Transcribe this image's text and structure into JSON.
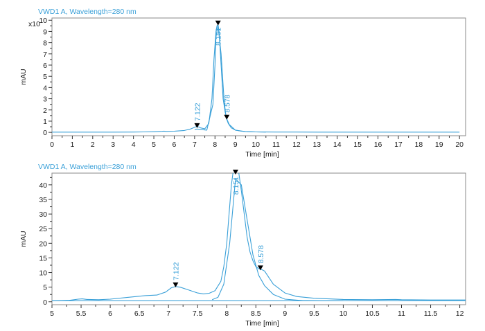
{
  "chart_data": [
    {
      "type": "line",
      "title": "VWD1 A, Wavelength=280 nm",
      "xlabel": "Time [min]",
      "ylabel": "mAU",
      "y_multiplier_label": "x10",
      "xlim": [
        0,
        20.3
      ],
      "ylim": [
        -0.3,
        10.2
      ],
      "x_ticks": [
        0,
        1,
        2,
        3,
        4,
        5,
        6,
        7,
        8,
        9,
        10,
        11,
        12,
        13,
        14,
        15,
        16,
        17,
        18,
        19,
        20
      ],
      "x_tick_labels": [
        "0",
        "1",
        "2",
        "3",
        "4",
        "5",
        "6",
        "7",
        "8",
        "9",
        "10",
        "11",
        "12",
        "13",
        "14",
        "15",
        "16",
        "17",
        "18",
        "19",
        "20"
      ],
      "y_ticks": [
        0,
        1,
        2,
        3,
        4,
        5,
        6,
        7,
        8,
        9,
        10
      ],
      "y_tick_labels": [
        "0",
        "1",
        "2",
        "3",
        "4",
        "5",
        "6",
        "7",
        "8",
        "9",
        "10"
      ],
      "grid": false,
      "colors": {
        "trace": "#3aa0d8",
        "title": "#3aa0d8",
        "marker": "#000000",
        "axis": "#333333"
      },
      "series": [
        {
          "x": [
            0,
            1,
            2,
            3,
            4,
            4.5,
            5,
            5.4,
            5.5,
            5.6,
            6,
            6.5,
            6.8,
            7.0,
            7.12,
            7.3,
            7.5,
            7.7,
            7.85,
            7.95,
            8.05,
            8.1,
            8.151,
            8.2,
            8.3,
            8.4,
            8.5,
            8.578,
            8.7,
            9,
            9.5,
            10,
            11,
            12,
            13,
            14,
            15,
            16,
            17,
            18,
            19,
            20
          ],
          "y": [
            0.02,
            0.02,
            0.02,
            0.02,
            0.03,
            0.04,
            0.06,
            0.09,
            0.11,
            0.08,
            0.1,
            0.17,
            0.3,
            0.45,
            0.55,
            0.4,
            0.32,
            0.8,
            3.0,
            6.5,
            9.0,
            9.5,
            9.6,
            9.0,
            6.0,
            3.0,
            1.8,
            1.2,
            0.7,
            0.2,
            0.07,
            0.04,
            0.03,
            0.03,
            0.02,
            0.02,
            0.02,
            0.02,
            0.02,
            0.02,
            0.02,
            0.02
          ]
        },
        {
          "x": [
            7.0,
            7.12,
            7.3,
            7.6,
            7.9,
            8.0,
            8.05,
            8.15,
            8.3,
            8.45,
            8.55,
            8.65,
            8.8,
            9.0,
            9.3,
            9.6,
            10,
            10.5
          ],
          "y": [
            0.25,
            0.3,
            0.25,
            0.2,
            2.5,
            6.0,
            8.5,
            9.5,
            7.0,
            2.8,
            1.3,
            0.8,
            0.4,
            0.2,
            0.1,
            0.06,
            0.04,
            0.03
          ]
        }
      ],
      "peaks": [
        {
          "x": 7.122,
          "y": 0.45,
          "label": "7.122"
        },
        {
          "x": 8.151,
          "y": 9.6,
          "label": "8.151"
        },
        {
          "x": 8.578,
          "y": 1.2,
          "label": "8.578"
        }
      ]
    },
    {
      "type": "line",
      "title": "VWD1 A, Wavelength=280 nm",
      "xlabel": "Time [min]",
      "ylabel": "mAU",
      "xlim": [
        5,
        12.1
      ],
      "ylim": [
        -1,
        44
      ],
      "x_ticks": [
        5,
        5.5,
        6,
        6.5,
        7,
        7.5,
        8,
        8.5,
        9,
        9.5,
        10,
        10.5,
        11,
        11.5,
        12
      ],
      "x_tick_labels": [
        "5",
        "5.5",
        "6",
        "6.5",
        "7",
        "7.5",
        "8",
        "8.5",
        "9",
        "9.5",
        "10",
        "10.5",
        "11",
        "11.5",
        "12"
      ],
      "y_ticks": [
        0,
        5,
        10,
        15,
        20,
        25,
        30,
        35,
        40
      ],
      "y_tick_labels": [
        "0",
        "5",
        "10",
        "15",
        "20",
        "25",
        "30",
        "35",
        "40"
      ],
      "grid": false,
      "colors": {
        "trace": "#3aa0d8",
        "title": "#3aa0d8",
        "marker": "#000000",
        "axis": "#333333"
      },
      "series": [
        {
          "x": [
            5,
            5.3,
            5.45,
            5.52,
            5.6,
            5.8,
            6,
            6.3,
            6.6,
            6.8,
            6.95,
            7.05,
            7.12,
            7.2,
            7.35,
            7.5,
            7.6,
            7.7,
            7.8,
            7.9,
            7.95,
            8.0,
            8.04,
            8.08,
            8.12,
            8.151,
            8.2,
            8.25,
            8.3,
            8.35,
            8.4,
            8.45,
            8.5,
            8.55,
            8.6,
            8.65,
            8.7,
            8.8,
            9.0,
            9.2,
            9.5,
            10,
            10.5,
            10.9,
            11,
            11.5,
            12,
            12.1
          ],
          "y": [
            0.3,
            0.5,
            0.9,
            1.0,
            0.8,
            0.7,
            0.9,
            1.5,
            2.1,
            2.3,
            3.3,
            4.8,
            5.2,
            5.0,
            4.0,
            3.0,
            2.7,
            2.9,
            3.8,
            7.0,
            12.0,
            20.0,
            30.0,
            40.0,
            46.0,
            48.0,
            45.0,
            38.0,
            30.0,
            22.0,
            17.0,
            14.0,
            12.0,
            11.3,
            11.0,
            10.5,
            9.0,
            6.0,
            3.0,
            1.8,
            1.2,
            0.8,
            0.7,
            0.8,
            0.7,
            0.6,
            0.6,
            0.6
          ]
        },
        {
          "x": [
            7.75,
            7.85,
            7.95,
            8.05,
            8.15,
            8.25,
            8.35,
            8.45,
            8.55,
            8.65,
            8.8,
            9.0,
            9.3,
            9.6,
            10
          ],
          "y": [
            0.7,
            1.5,
            6.0,
            20.0,
            42.0,
            40.0,
            28.0,
            16.0,
            9.0,
            5.5,
            2.5,
            0.9,
            0.4,
            0.3,
            0.3
          ]
        },
        {
          "x": [
            5,
            12.1
          ],
          "y": [
            0.35,
            0.35
          ]
        }
      ],
      "peaks": [
        {
          "x": 7.122,
          "y": 5.2,
          "label": "7.122"
        },
        {
          "x": 8.151,
          "y": 44,
          "label": "8.151"
        },
        {
          "x": 8.578,
          "y": 11.0,
          "label": "8.578"
        }
      ]
    }
  ]
}
